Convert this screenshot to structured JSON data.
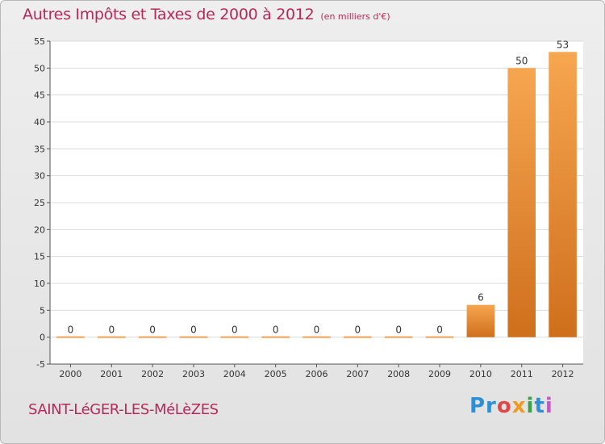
{
  "title": "Autres Impôts et Taxes de 2000 à 2012",
  "unit_note": "(en milliers d'€)",
  "commune": "SAINT-LéGER-LES-MéLèZES",
  "logo": {
    "parts": [
      "Pr",
      "o",
      "x",
      "i",
      "t",
      "i"
    ]
  },
  "colors": {
    "bar_light": "#f7a650",
    "bar_dark": "#cf6f1c",
    "title": "#b52a5b"
  },
  "chart_data": {
    "type": "bar",
    "categories": [
      "2000",
      "2001",
      "2002",
      "2003",
      "2004",
      "2005",
      "2006",
      "2007",
      "2008",
      "2009",
      "2010",
      "2011",
      "2012"
    ],
    "values": [
      0,
      0,
      0,
      0,
      0,
      0,
      0,
      0,
      0,
      0,
      6,
      50,
      53
    ],
    "ylim": [
      -5,
      55
    ],
    "yticks": [
      -5,
      0,
      5,
      10,
      15,
      20,
      25,
      30,
      35,
      40,
      45,
      50,
      55
    ],
    "grid": true,
    "legend": "none"
  }
}
